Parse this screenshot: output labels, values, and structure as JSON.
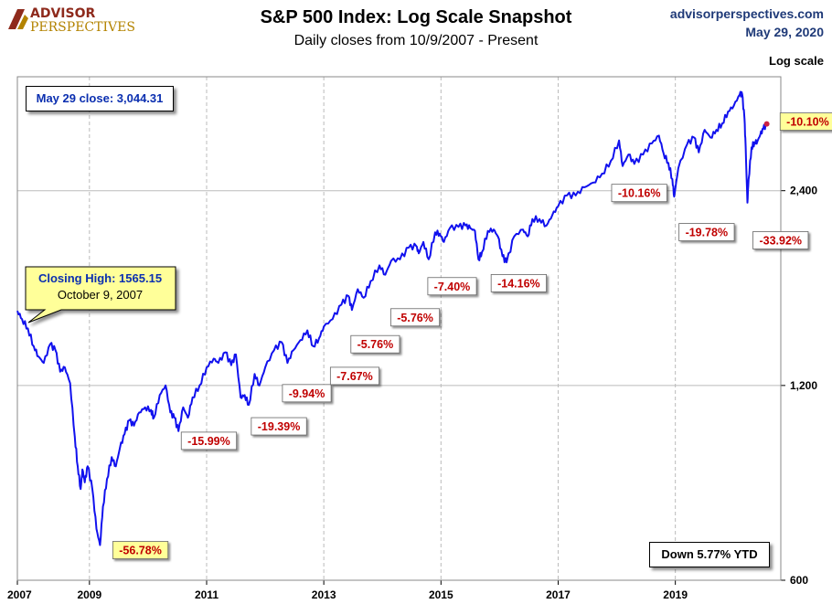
{
  "logo": {
    "line1": "ADVISOR",
    "line2": "PERSPECTIVES"
  },
  "header": {
    "title": "S&P 500 Index: Log Scale Snapshot",
    "subtitle": "Daily closes from 10/9/2007 - Present",
    "site": "advisorperspectives.com",
    "date": "May 29, 2020",
    "scale_label": "Log scale"
  },
  "close_box": "May 29 close: 3,044.31",
  "ytd_box": "Down 5.77% YTD",
  "callout": {
    "line1": "Closing High: 1565.15",
    "line2": "October 9, 2007"
  },
  "colors": {
    "line": "#1111ee",
    "label": "#c00000",
    "highlight": "#ffff99",
    "grid": "#bbbbbb",
    "endpoint": "#cc2244"
  },
  "chart_data": {
    "type": "line",
    "title": "S&P 500 Index: Log Scale Snapshot",
    "subtitle": "Daily closes from 10/9/2007 - Present",
    "y_scale": "log",
    "ylim": [
      600,
      3600
    ],
    "xlim": [
      2007.77,
      2020.8
    ],
    "y_ticks": [
      {
        "value": 600,
        "label": "600"
      },
      {
        "value": 1200,
        "label": "1,200"
      },
      {
        "value": 2400,
        "label": "2,400"
      }
    ],
    "x_ticks": [
      {
        "value": 2007.77,
        "label": "2007"
      },
      {
        "value": 2009,
        "label": "2009"
      },
      {
        "value": 2011,
        "label": "2011"
      },
      {
        "value": 2013,
        "label": "2013"
      },
      {
        "value": 2015,
        "label": "2015"
      },
      {
        "value": 2017,
        "label": "2017"
      },
      {
        "value": 2019,
        "label": "2019"
      }
    ],
    "grid": "vertical dashed at each year, horizontal at y ticks",
    "series": [
      {
        "points": [
          [
            2007.77,
            1565
          ],
          [
            2007.85,
            1520
          ],
          [
            2007.95,
            1470
          ],
          [
            2008.05,
            1380
          ],
          [
            2008.13,
            1330
          ],
          [
            2008.22,
            1300
          ],
          [
            2008.33,
            1390
          ],
          [
            2008.42,
            1360
          ],
          [
            2008.5,
            1260
          ],
          [
            2008.58,
            1280
          ],
          [
            2008.67,
            1210
          ],
          [
            2008.75,
            1000
          ],
          [
            2008.8,
            900
          ],
          [
            2008.85,
            830
          ],
          [
            2008.88,
            890
          ],
          [
            2008.92,
            850
          ],
          [
            2008.97,
            900
          ],
          [
            2009.05,
            830
          ],
          [
            2009.12,
            720
          ],
          [
            2009.18,
            680
          ],
          [
            2009.23,
            780
          ],
          [
            2009.3,
            860
          ],
          [
            2009.38,
            930
          ],
          [
            2009.45,
            900
          ],
          [
            2009.52,
            960
          ],
          [
            2009.6,
            1010
          ],
          [
            2009.68,
            1060
          ],
          [
            2009.76,
            1040
          ],
          [
            2009.85,
            1090
          ],
          [
            2009.95,
            1110
          ],
          [
            2010.05,
            1100
          ],
          [
            2010.1,
            1070
          ],
          [
            2010.2,
            1160
          ],
          [
            2010.3,
            1200
          ],
          [
            2010.38,
            1090
          ],
          [
            2010.45,
            1070
          ],
          [
            2010.52,
            1020
          ],
          [
            2010.6,
            1110
          ],
          [
            2010.68,
            1070
          ],
          [
            2010.76,
            1150
          ],
          [
            2010.88,
            1200
          ],
          [
            2011,
            1280
          ],
          [
            2011.12,
            1320
          ],
          [
            2011.2,
            1300
          ],
          [
            2011.32,
            1350
          ],
          [
            2011.42,
            1290
          ],
          [
            2011.5,
            1340
          ],
          [
            2011.58,
            1150
          ],
          [
            2011.65,
            1160
          ],
          [
            2011.72,
            1120
          ],
          [
            2011.82,
            1250
          ],
          [
            2011.9,
            1200
          ],
          [
            2012,
            1280
          ],
          [
            2012.15,
            1360
          ],
          [
            2012.28,
            1400
          ],
          [
            2012.38,
            1300
          ],
          [
            2012.48,
            1360
          ],
          [
            2012.6,
            1410
          ],
          [
            2012.72,
            1460
          ],
          [
            2012.82,
            1380
          ],
          [
            2012.92,
            1420
          ],
          [
            2013,
            1480
          ],
          [
            2013.15,
            1520
          ],
          [
            2013.3,
            1600
          ],
          [
            2013.42,
            1650
          ],
          [
            2013.48,
            1570
          ],
          [
            2013.58,
            1690
          ],
          [
            2013.68,
            1640
          ],
          [
            2013.8,
            1740
          ],
          [
            2013.95,
            1840
          ],
          [
            2014.05,
            1780
          ],
          [
            2014.15,
            1870
          ],
          [
            2014.3,
            1880
          ],
          [
            2014.45,
            1960
          ],
          [
            2014.58,
            1970
          ],
          [
            2014.62,
            1920
          ],
          [
            2014.7,
            2000
          ],
          [
            2014.79,
            1880
          ],
          [
            2014.9,
            2070
          ],
          [
            2014.98,
            2060
          ],
          [
            2015.05,
            2000
          ],
          [
            2015.15,
            2100
          ],
          [
            2015.3,
            2110
          ],
          [
            2015.42,
            2120
          ],
          [
            2015.5,
            2100
          ],
          [
            2015.58,
            2080
          ],
          [
            2015.64,
            1880
          ],
          [
            2015.7,
            1930
          ],
          [
            2015.8,
            2080
          ],
          [
            2015.9,
            2090
          ],
          [
            2015.97,
            2040
          ],
          [
            2016.05,
            1900
          ],
          [
            2016.12,
            1860
          ],
          [
            2016.25,
            2040
          ],
          [
            2016.4,
            2090
          ],
          [
            2016.48,
            2040
          ],
          [
            2016.56,
            2170
          ],
          [
            2016.68,
            2170
          ],
          [
            2016.8,
            2120
          ],
          [
            2016.9,
            2200
          ],
          [
            2017,
            2270
          ],
          [
            2017.15,
            2360
          ],
          [
            2017.3,
            2360
          ],
          [
            2017.45,
            2430
          ],
          [
            2017.6,
            2470
          ],
          [
            2017.75,
            2550
          ],
          [
            2017.9,
            2670
          ],
          [
            2018.04,
            2870
          ],
          [
            2018.1,
            2620
          ],
          [
            2018.2,
            2730
          ],
          [
            2018.3,
            2640
          ],
          [
            2018.45,
            2730
          ],
          [
            2018.6,
            2840
          ],
          [
            2018.72,
            2920
          ],
          [
            2018.8,
            2740
          ],
          [
            2018.88,
            2650
          ],
          [
            2018.95,
            2500
          ],
          [
            2018.98,
            2350
          ],
          [
            2019.05,
            2600
          ],
          [
            2019.2,
            2830
          ],
          [
            2019.32,
            2900
          ],
          [
            2019.4,
            2750
          ],
          [
            2019.5,
            2980
          ],
          [
            2019.6,
            2900
          ],
          [
            2019.7,
            2980
          ],
          [
            2019.8,
            3050
          ],
          [
            2019.9,
            3180
          ],
          [
            2020,
            3250
          ],
          [
            2020.1,
            3380
          ],
          [
            2020.14,
            3386
          ],
          [
            2020.18,
            3100
          ],
          [
            2020.2,
            2800
          ],
          [
            2020.23,
            2300
          ],
          [
            2020.25,
            2500
          ],
          [
            2020.3,
            2800
          ],
          [
            2020.35,
            2850
          ],
          [
            2020.4,
            2860
          ],
          [
            2020.45,
            2930
          ],
          [
            2020.5,
            2990
          ],
          [
            2020.56,
            3044
          ]
        ]
      }
    ],
    "annotations": [
      {
        "x": 2020.57,
        "y": 3044,
        "text": "-10.10%",
        "highlight": true
      },
      {
        "x": 2009.18,
        "y": 680,
        "text": "-56.78%",
        "highlight": true
      },
      {
        "x": 2010.38,
        "y": 1050,
        "text": "-15.99%"
      },
      {
        "x": 2011.7,
        "y": 1120,
        "text": "-19.39%"
      },
      {
        "x": 2012.45,
        "y": 1260,
        "text": "-9.94%"
      },
      {
        "x": 2013.05,
        "y": 1340,
        "text": "-7.67%"
      },
      {
        "x": 2013.4,
        "y": 1500,
        "text": "-5.76%"
      },
      {
        "x": 2014.05,
        "y": 1640,
        "text": "-5.76%"
      },
      {
        "x": 2014.65,
        "y": 1820,
        "text": "-7.40%"
      },
      {
        "x": 2015.7,
        "y": 1840,
        "text": "-14.16%"
      },
      {
        "x": 2018.1,
        "y": 2520,
        "text": "-10.16%"
      },
      {
        "x": 2019,
        "y": 2250,
        "text": "-19.78%"
      },
      {
        "x": 2020.2,
        "y": 2200,
        "text": "-33.92%"
      }
    ]
  }
}
